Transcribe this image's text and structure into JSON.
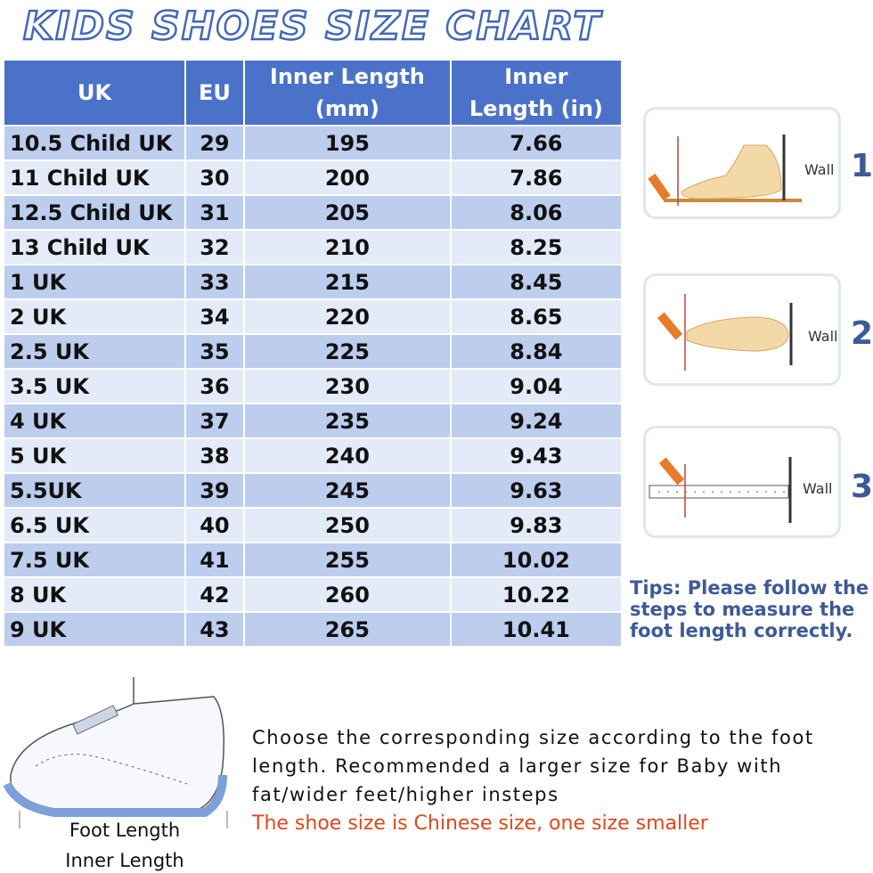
{
  "title": "KIDS SHOES SIZE CHART",
  "table": {
    "header": [
      "UK",
      "EU",
      "Inner Length (mm)",
      "Inner Length (in)"
    ],
    "rows": [
      [
        "10.5 Child UK",
        "29",
        "195",
        "7.66"
      ],
      [
        "11 Child UK",
        "30",
        "200",
        "7.86"
      ],
      [
        "12.5 Child UK",
        "31",
        "205",
        "8.06"
      ],
      [
        "13 Child UK",
        "32",
        "210",
        "8.25"
      ],
      [
        "1 UK",
        "33",
        "215",
        "8.45"
      ],
      [
        "2 UK",
        "34",
        "220",
        "8.65"
      ],
      [
        "2.5 UK",
        "35",
        "225",
        "8.84"
      ],
      [
        "3.5 UK",
        "36",
        "230",
        "9.04"
      ],
      [
        "4 UK",
        "37",
        "235",
        "9.24"
      ],
      [
        "5 UK",
        "38",
        "240",
        "9.43"
      ],
      [
        "5.5UK",
        "39",
        "245",
        "9.63"
      ],
      [
        "6.5 UK",
        "40",
        "250",
        "9.83"
      ],
      [
        "7.5 UK",
        "41",
        "255",
        "10.02"
      ],
      [
        "8 UK",
        "42",
        "260",
        "10.22"
      ],
      [
        "9 UK",
        "43",
        "265",
        "10.41"
      ]
    ]
  },
  "steps": [
    {
      "label": "Wall",
      "number": "1"
    },
    {
      "label": "Wall",
      "number": "2"
    },
    {
      "label": "Wall",
      "number": "3"
    }
  ],
  "tips": "Tips: Please follow the steps to measure the foot length correctly.",
  "description": "Choose the corresponding size according to the foot length. Recommended a larger size for Baby with fat/wider feet/higher insteps",
  "note": "The shoe size is Chinese size, one size smaller",
  "shoe_labels": [
    "Foot Length",
    "Inner Length"
  ]
}
